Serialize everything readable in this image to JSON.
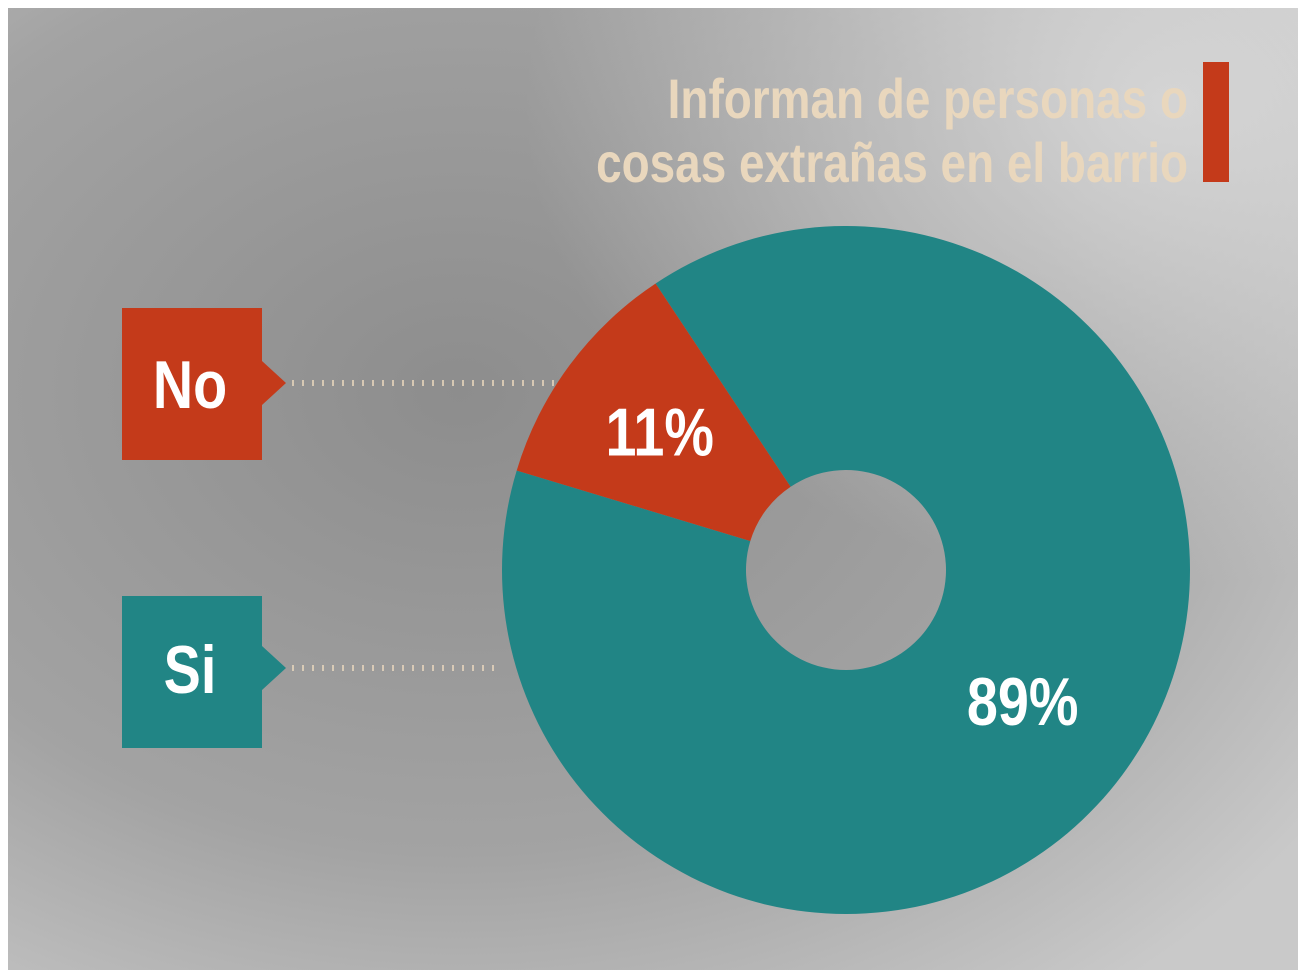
{
  "chart_data": {
    "type": "pie",
    "donut": true,
    "title": "Informan de personas o cosas extrañas en el barrio",
    "categories": [
      "No",
      "Si"
    ],
    "values": [
      11,
      89
    ],
    "value_labels": [
      "11%",
      "89%"
    ],
    "colors": [
      "#c43a1a",
      "#218585"
    ]
  }
}
